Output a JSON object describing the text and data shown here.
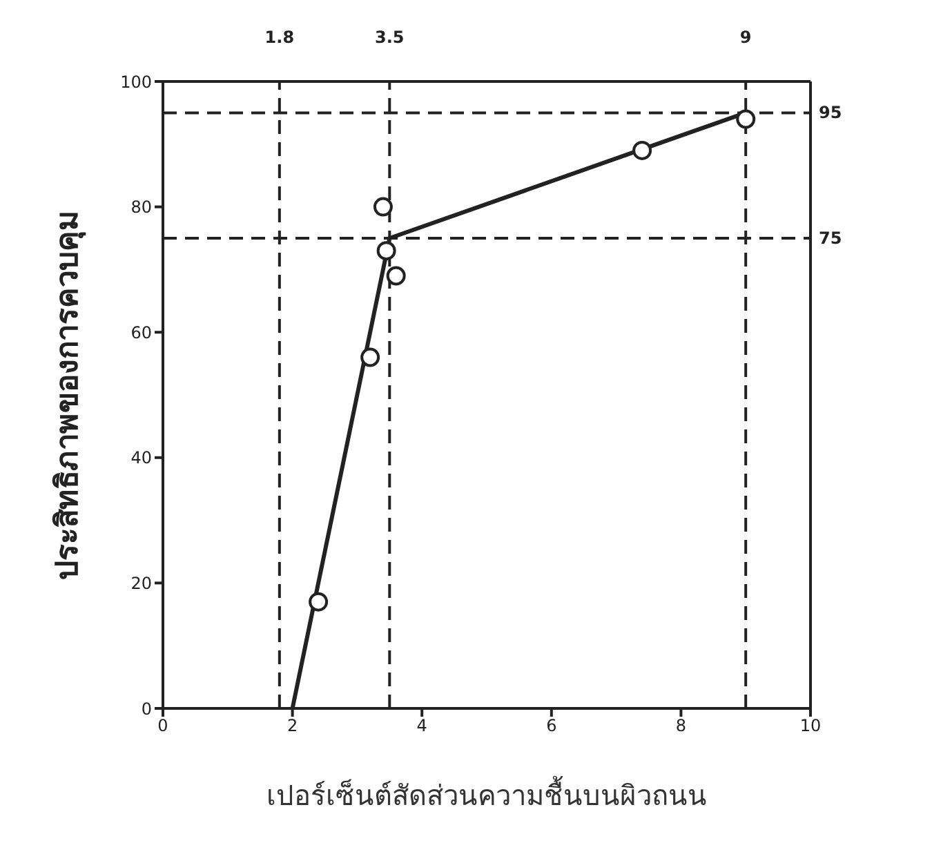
{
  "chart_data": {
    "type": "scatter",
    "xlabel": "เปอร์เซ็นต์สัดส่วนความชื้นบนผิวถนน",
    "ylabel": "ประสิทธิภาพของการควบคุม",
    "xlim": [
      0,
      10
    ],
    "xticks": [
      0,
      2,
      4,
      6,
      8,
      10
    ],
    "ylim": [
      0,
      100
    ],
    "yticks": [
      0,
      20,
      40,
      60,
      80,
      100
    ],
    "legend": false,
    "series": [
      {
        "color": "#222222",
        "marker": "circle",
        "x": [
          2.4,
          3.2,
          3.4,
          3.45,
          3.6,
          7.4,
          9
        ],
        "values": [
          17,
          56,
          80,
          73,
          69,
          89,
          94
        ]
      },
      {
        "type": "line",
        "color": "#222222",
        "marker": "none",
        "line_style": "solid",
        "x": [
          2,
          3.5,
          9
        ],
        "values": [
          0,
          75,
          95
        ]
      }
    ],
    "ref_lines": [
      {
        "axis": "x",
        "value": 1.8,
        "label": "1.8",
        "line_style": "dashed",
        "color": "#222222"
      },
      {
        "axis": "x",
        "value": 3.5,
        "label": "3.5",
        "line_style": "dashed",
        "color": "#222222"
      },
      {
        "axis": "x",
        "value": 9,
        "label": "9",
        "line_style": "dashed",
        "color": "#222222"
      },
      {
        "axis": "y",
        "value": 95,
        "label": "95",
        "line_style": "dashed",
        "color": "#222222"
      },
      {
        "axis": "y",
        "value": 75,
        "label": "75",
        "line_style": "dashed",
        "color": "#222222"
      }
    ]
  }
}
